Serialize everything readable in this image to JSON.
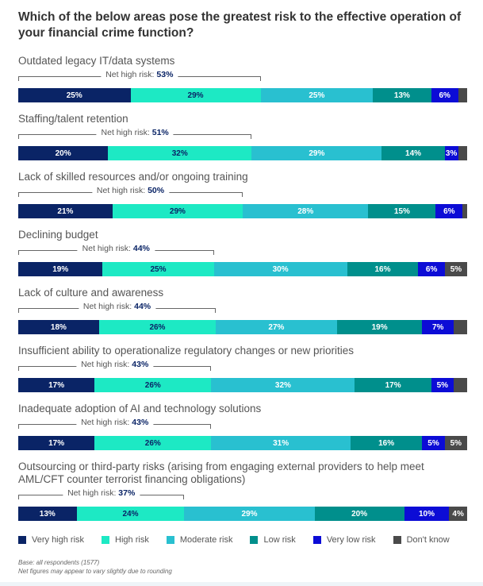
{
  "chart_data": {
    "type": "bar",
    "orientation": "horizontal-stacked-100",
    "title": "Which of the below areas pose the greatest risk to the effective operation of your financial crime function?",
    "net_prefix": "Net high risk: ",
    "series": [
      {
        "name": "Very high risk",
        "color": "#0a2466",
        "text": "#ffffff"
      },
      {
        "name": "High risk",
        "color": "#1de9c4",
        "text": "#0a2466"
      },
      {
        "name": "Moderate risk",
        "color": "#29c0d0",
        "text": "#ffffff"
      },
      {
        "name": "Low risk",
        "color": "#008f8c",
        "text": "#ffffff"
      },
      {
        "name": "Very low risk",
        "color": "#0c0cd6",
        "text": "#ffffff"
      },
      {
        "name": "Don't know",
        "color": "#4a4a4a",
        "text": "#ffffff"
      }
    ],
    "categories": [
      {
        "label": "Outdated legacy IT/data systems",
        "net": "53%",
        "values": [
          25,
          29,
          25,
          13,
          6,
          2
        ],
        "labels": [
          "25%",
          "29%",
          "25%",
          "13%",
          "6%",
          ""
        ]
      },
      {
        "label": "Staffing/talent retention",
        "net": "51%",
        "values": [
          20,
          32,
          29,
          14,
          3,
          2
        ],
        "labels": [
          "20%",
          "32%",
          "29%",
          "14%",
          "3%",
          ""
        ]
      },
      {
        "label": "Lack of skilled resources and/or ongoing training",
        "net": "50%",
        "values": [
          21,
          29,
          28,
          15,
          6,
          1
        ],
        "labels": [
          "21%",
          "29%",
          "28%",
          "15%",
          "6%",
          ""
        ]
      },
      {
        "label": "Declining budget",
        "net": "44%",
        "values": [
          19,
          25,
          30,
          16,
          6,
          5
        ],
        "labels": [
          "19%",
          "25%",
          "30%",
          "16%",
          "6%",
          "5%"
        ]
      },
      {
        "label": "Lack of culture and awareness",
        "net": "44%",
        "values": [
          18,
          26,
          27,
          19,
          7,
          3
        ],
        "labels": [
          "18%",
          "26%",
          "27%",
          "19%",
          "7%",
          ""
        ]
      },
      {
        "label": "Insufficient ability to operationalize regulatory changes or new priorities",
        "net": "43%",
        "values": [
          17,
          26,
          32,
          17,
          5,
          3
        ],
        "labels": [
          "17%",
          "26%",
          "32%",
          "17%",
          "5%",
          ""
        ]
      },
      {
        "label": "Inadequate adoption of AI and technology solutions",
        "net": "43%",
        "values": [
          17,
          26,
          31,
          16,
          5,
          5
        ],
        "labels": [
          "17%",
          "26%",
          "31%",
          "16%",
          "5%",
          "5%"
        ]
      },
      {
        "label": "Outsourcing or third-party risks (arising from engaging external providers to help meet AML/CFT counter terrorist financing obligations)",
        "net": "37%",
        "values": [
          13,
          24,
          29,
          20,
          10,
          4
        ],
        "labels": [
          "13%",
          "24%",
          "29%",
          "20%",
          "10%",
          "4%"
        ]
      }
    ],
    "legend_position": "bottom",
    "footnotes": [
      "Base: all respondents (1577)",
      "Net figures may appear to vary slightly due to rounding"
    ]
  }
}
